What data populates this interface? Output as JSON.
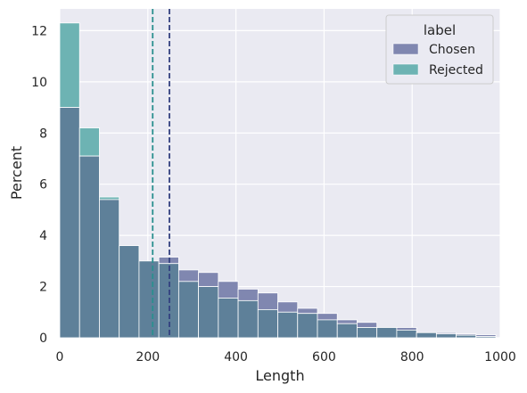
{
  "chart_data": {
    "type": "bar",
    "xlabel": "Length",
    "ylabel": "Percent",
    "xlim": [
      0,
      1000
    ],
    "ylim": [
      0,
      12.85
    ],
    "xticks": [
      "0",
      "200",
      "400",
      "600",
      "800",
      "1000"
    ],
    "xtick_values": [
      0,
      200,
      400,
      600,
      800,
      1000
    ],
    "yticks": [
      "0",
      "2",
      "4",
      "6",
      "8",
      "10",
      "12"
    ],
    "ytick_values": [
      0,
      2,
      4,
      6,
      8,
      10,
      12
    ],
    "grid": true,
    "bin_edges": [
      0,
      45,
      90,
      135,
      180,
      225,
      270,
      315,
      360,
      405,
      450,
      495,
      540,
      585,
      630,
      675,
      720,
      765,
      810,
      855,
      900,
      945,
      990
    ],
    "legend": {
      "title": "label",
      "position": "top-right"
    },
    "series": [
      {
        "name": "Chosen",
        "color": "#8087b0",
        "values": [
          9.0,
          7.1,
          5.4,
          3.6,
          3.0,
          3.15,
          2.65,
          2.55,
          2.2,
          1.9,
          1.75,
          1.4,
          1.15,
          0.95,
          0.7,
          0.6,
          0.4,
          0.4,
          0.2,
          0.2,
          0.15,
          0.12
        ]
      },
      {
        "name": "Rejected",
        "color": "#6db3b3",
        "values": [
          12.3,
          8.2,
          5.5,
          3.6,
          3.0,
          2.9,
          2.2,
          2.0,
          1.55,
          1.45,
          1.1,
          1.0,
          0.95,
          0.7,
          0.55,
          0.4,
          0.4,
          0.3,
          0.2,
          0.15,
          0.1,
          0.05
        ]
      }
    ],
    "overlap_color": "#5e8099",
    "vlines": [
      {
        "x": 211,
        "color": "#2a8f8f",
        "style": "dashed"
      },
      {
        "x": 249,
        "color": "#33407f",
        "style": "dashed"
      }
    ]
  }
}
